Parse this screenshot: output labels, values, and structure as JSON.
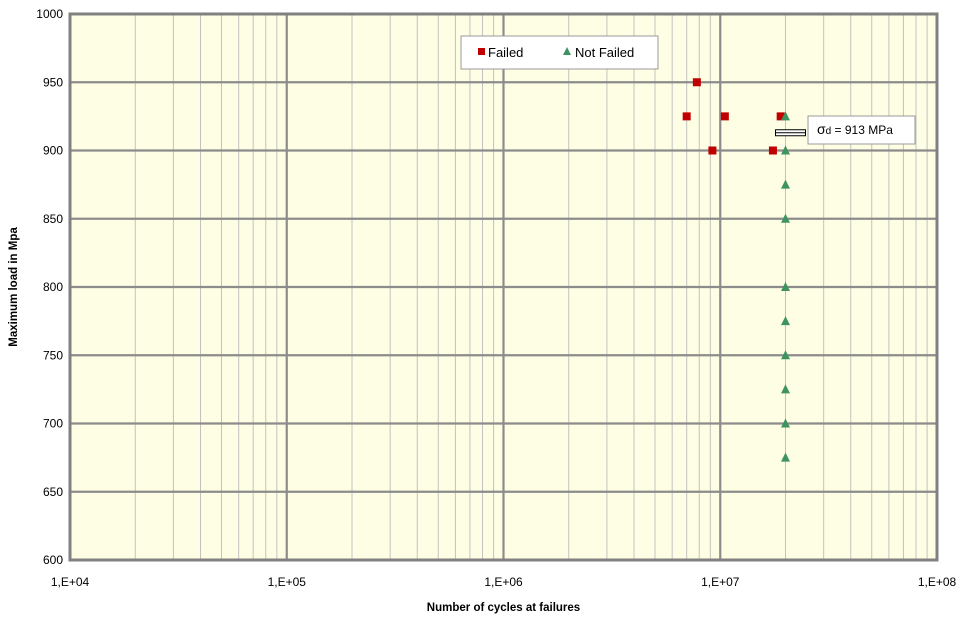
{
  "chart_data": {
    "type": "scatter",
    "xscale": "log",
    "xlim": [
      10000,
      100000000
    ],
    "ylim": [
      600,
      1000
    ],
    "yticks": [
      600,
      650,
      700,
      750,
      800,
      850,
      900,
      950,
      1000
    ],
    "xtick_labels": [
      "1,E+04",
      "1,E+05",
      "1,E+06",
      "1,E+07",
      "1,E+08"
    ],
    "xlabel": "Number of cycles at failures",
    "ylabel": "Maximum load in Mpa",
    "grid": true,
    "legend_position": "top-center",
    "colors": {
      "plot_background": "#FEFEE4",
      "grid_major": "#8C8C8C",
      "grid_minor": "#C2C2C2",
      "failed": "#C00000",
      "not_failed": "#3E9460"
    },
    "series": [
      {
        "name": "Failed",
        "marker": "square",
        "points": [
          {
            "x": 7000000,
            "y": 925
          },
          {
            "x": 7800000,
            "y": 950
          },
          {
            "x": 9200000,
            "y": 900
          },
          {
            "x": 10500000,
            "y": 925
          },
          {
            "x": 17500000,
            "y": 900
          },
          {
            "x": 19000000,
            "y": 925
          }
        ]
      },
      {
        "name": "Not Failed",
        "marker": "triangle",
        "points": [
          {
            "x": 20000000,
            "y": 925
          },
          {
            "x": 20000000,
            "y": 900
          },
          {
            "x": 20000000,
            "y": 875
          },
          {
            "x": 20000000,
            "y": 850
          },
          {
            "x": 20000000,
            "y": 800
          },
          {
            "x": 20000000,
            "y": 775
          },
          {
            "x": 20000000,
            "y": 750
          },
          {
            "x": 20000000,
            "y": 725
          },
          {
            "x": 20000000,
            "y": 700
          },
          {
            "x": 20000000,
            "y": 675
          }
        ]
      }
    ],
    "annotation": {
      "symbol": "σ",
      "subscript": "d",
      "text": " = 913 MPa",
      "y": 913,
      "x": 20000000
    }
  }
}
